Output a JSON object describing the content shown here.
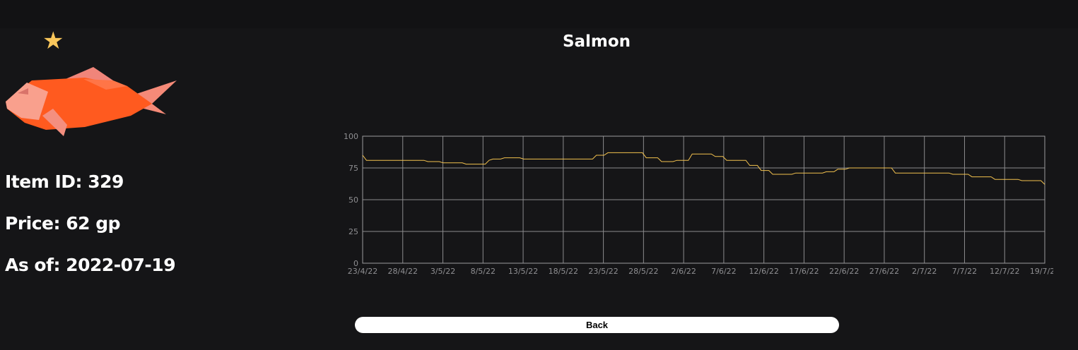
{
  "item": {
    "name": "Salmon",
    "id_text": "Item ID: 329",
    "price_text": "Price: 62 gp",
    "as_of_text": "As of: 2022-07-19"
  },
  "icons": {
    "favorite": "star-icon",
    "item_image": "salmon-fish-icon"
  },
  "colors": {
    "background": "#151517",
    "line": "#f2c14e",
    "star": "#f9c65b",
    "fish": "#ff5a1f"
  },
  "back_label": "Back",
  "chart_data": {
    "type": "line",
    "title": "",
    "xlabel": "",
    "ylabel": "",
    "ylim": [
      0,
      100
    ],
    "yticks": [
      0,
      25,
      50,
      75,
      100
    ],
    "grid": true,
    "xtick_labels": [
      "23/4/22",
      "28/4/22",
      "3/5/22",
      "8/5/22",
      "13/5/22",
      "18/5/22",
      "23/5/22",
      "28/5/22",
      "2/6/22",
      "7/6/22",
      "12/6/22",
      "17/6/22",
      "22/6/22",
      "27/6/22",
      "2/7/22",
      "7/7/22",
      "12/7/22",
      "19/7/22"
    ],
    "series": [
      {
        "values": [
          85,
          81,
          81,
          81,
          81,
          81,
          81,
          81,
          81,
          81,
          81,
          81,
          81,
          81,
          81,
          81,
          81,
          80,
          80,
          80,
          80,
          79,
          79,
          79,
          79,
          79,
          79,
          78,
          78,
          78,
          78,
          78,
          78,
          81,
          82,
          82,
          82,
          83,
          83,
          83,
          83,
          83,
          82,
          82,
          82,
          82,
          82,
          82,
          82,
          82,
          82,
          82,
          82,
          82,
          82,
          82,
          82,
          82,
          82,
          82,
          82,
          85,
          85,
          85,
          87,
          87,
          87,
          87,
          87,
          87,
          87,
          87,
          87,
          87,
          83,
          83,
          83,
          83,
          80,
          80,
          80,
          80,
          81,
          81,
          81,
          81,
          86,
          86,
          86,
          86,
          86,
          86,
          84,
          84,
          84,
          81,
          81,
          81,
          81,
          81,
          81,
          77,
          77,
          77,
          73,
          73,
          73,
          70,
          70,
          70,
          70,
          70,
          70,
          71,
          71,
          71,
          71,
          71,
          71,
          71,
          71,
          72,
          72,
          72,
          74,
          74,
          74,
          75,
          75,
          75,
          75,
          75,
          75,
          75,
          75,
          75,
          75,
          75,
          75,
          71,
          71,
          71,
          71,
          71,
          71,
          71,
          71,
          71,
          71,
          71,
          71,
          71,
          71,
          71,
          70,
          70,
          70,
          70,
          70,
          68,
          68,
          68,
          68,
          68,
          68,
          66,
          66,
          66,
          66,
          66,
          66,
          66,
          65,
          65,
          65,
          65,
          65,
          65,
          62
        ]
      }
    ]
  }
}
